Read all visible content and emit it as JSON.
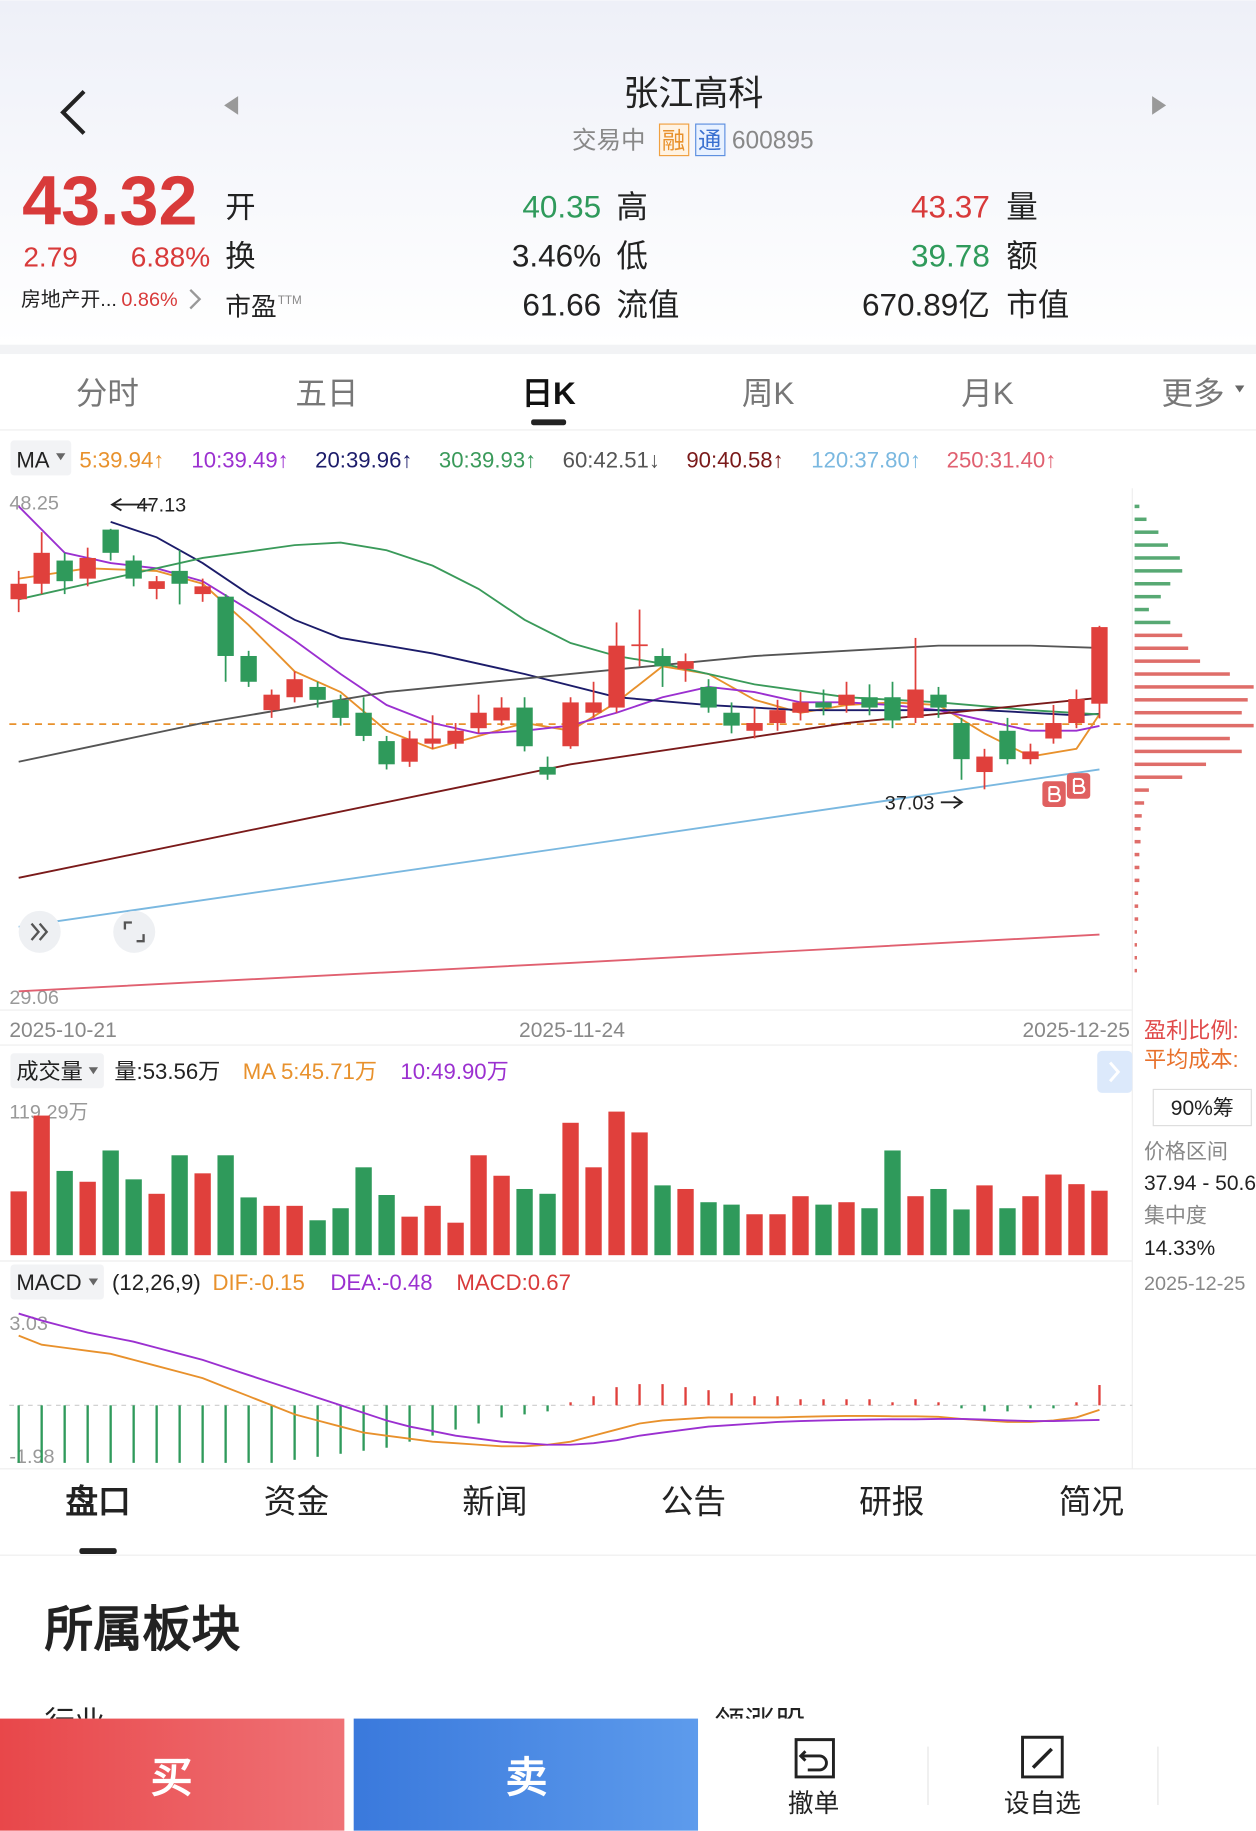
{
  "header": {
    "title": "张江高科",
    "status": "交易中",
    "badges": [
      "融",
      "通"
    ],
    "code": "600895"
  },
  "quote": {
    "price": "43.32",
    "change": "2.79",
    "change_pct": "6.88%",
    "sector": "房地产开...",
    "sector_pct": "0.86%",
    "labels": {
      "open": "开",
      "turnover": "换",
      "pe": "市盈",
      "pe_sup": "TTM"
    },
    "col2": [
      {
        "value": "40.35",
        "label": "高"
      },
      {
        "value": "3.46%",
        "label": "低"
      },
      {
        "value": "61.66",
        "label": "流值"
      }
    ],
    "col3": [
      {
        "value": "43.37",
        "label": "量"
      },
      {
        "value": "39.78",
        "label": "额"
      },
      {
        "value": "670.89亿",
        "label": "市值"
      }
    ]
  },
  "tabs": [
    "分时",
    "五日",
    "日K",
    "周K",
    "月K",
    "更多"
  ],
  "chart": {
    "type": "candlestick",
    "indicator": "MA",
    "ylim": [
      29.06,
      48.25
    ],
    "yticks": [
      48.25,
      29.06
    ],
    "dates": [
      "2025-10-21",
      "2025-11-24",
      "2025-12-25"
    ],
    "annotations": {
      "high": "47.13",
      "low": "37.03"
    },
    "candles": [
      [
        44.4,
        45.0,
        45.5,
        43.9
      ],
      [
        45.0,
        46.2,
        47.0,
        44.6
      ],
      [
        45.9,
        45.1,
        46.2,
        44.6
      ],
      [
        45.2,
        46.0,
        46.4,
        44.9
      ],
      [
        47.1,
        46.2,
        47.13,
        45.9
      ],
      [
        45.9,
        45.2,
        46.1,
        44.9
      ],
      [
        44.8,
        45.1,
        45.3,
        44.4
      ],
      [
        45.5,
        45.0,
        46.3,
        44.2
      ],
      [
        44.6,
        44.9,
        45.2,
        44.3
      ],
      [
        44.5,
        42.2,
        44.6,
        41.2
      ],
      [
        42.2,
        41.2,
        42.4,
        41.0
      ],
      [
        40.1,
        40.7,
        40.9,
        39.8
      ],
      [
        40.6,
        41.3,
        41.6,
        40.4
      ],
      [
        41.0,
        40.5,
        41.2,
        40.2
      ],
      [
        40.5,
        39.8,
        40.7,
        39.5
      ],
      [
        40.0,
        39.1,
        40.6,
        38.9
      ],
      [
        38.9,
        38.0,
        39.1,
        37.8
      ],
      [
        38.1,
        39.0,
        39.3,
        37.9
      ],
      [
        38.8,
        39.0,
        39.9,
        38.6
      ],
      [
        38.8,
        39.3,
        39.6,
        38.6
      ],
      [
        39.4,
        40.0,
        40.7,
        39.2
      ],
      [
        39.7,
        40.2,
        40.6,
        39.5
      ],
      [
        40.2,
        38.7,
        40.6,
        38.5
      ],
      [
        37.9,
        37.6,
        38.3,
        37.4
      ],
      [
        38.7,
        40.4,
        40.6,
        38.6
      ],
      [
        40.0,
        40.4,
        41.2,
        39.8
      ],
      [
        40.2,
        42.6,
        43.5,
        40.0
      ],
      [
        42.6,
        42.65,
        44.0,
        41.8
      ],
      [
        42.2,
        41.8,
        42.5,
        41.0
      ],
      [
        41.7,
        42.0,
        42.3,
        41.2
      ],
      [
        41.0,
        40.2,
        41.3,
        40.0
      ],
      [
        40.0,
        39.5,
        40.4,
        39.2
      ],
      [
        39.3,
        39.6,
        40.2,
        39.0
      ],
      [
        39.6,
        40.1,
        40.5,
        39.3
      ],
      [
        40.0,
        40.4,
        40.8,
        39.7
      ],
      [
        40.4,
        40.2,
        40.9,
        39.9
      ],
      [
        40.3,
        40.7,
        41.2,
        40.0
      ],
      [
        40.6,
        40.2,
        41.1,
        39.9
      ],
      [
        40.6,
        39.7,
        41.2,
        39.4
      ],
      [
        39.8,
        40.9,
        42.9,
        39.6
      ],
      [
        40.7,
        40.2,
        41.0,
        39.8
      ],
      [
        39.6,
        38.2,
        39.8,
        37.4
      ],
      [
        37.7,
        38.3,
        38.6,
        37.03
      ],
      [
        39.3,
        38.2,
        39.8,
        38.0
      ],
      [
        38.2,
        38.5,
        38.8,
        38.0
      ],
      [
        39.0,
        39.6,
        40.3,
        38.8
      ],
      [
        39.6,
        40.53,
        40.9,
        39.4
      ],
      [
        40.35,
        43.32,
        43.37,
        39.78
      ]
    ],
    "up_color": "#e0403c",
    "down_color": "#2f9a5b",
    "ma_lines": [
      {
        "label": "5:39.94↑",
        "color": "#e8912c",
        "x": [
          0,
          3,
          6,
          8,
          10,
          12,
          14,
          16,
          18,
          20,
          22,
          24,
          26,
          28,
          30,
          32,
          34,
          36,
          38,
          40,
          42,
          44,
          46,
          47
        ],
        "values": [
          45.2,
          45.6,
          45.5,
          45.0,
          43.4,
          41.6,
          40.8,
          39.3,
          38.6,
          39.1,
          39.6,
          39.3,
          40.4,
          41.8,
          41.5,
          40.5,
          40.0,
          40.3,
          40.4,
          40.3,
          39.2,
          38.3,
          38.6,
          39.94
        ]
      },
      {
        "label": "10:39.49↑",
        "color": "#9b30d0",
        "x": [
          0,
          2,
          4,
          6,
          8,
          10,
          12,
          14,
          16,
          18,
          20,
          22,
          24,
          26,
          28,
          30,
          32,
          34,
          36,
          38,
          40,
          42,
          44,
          46,
          47
        ],
        "values": [
          48.0,
          46.2,
          45.8,
          45.6,
          45.1,
          44.0,
          42.8,
          41.5,
          40.3,
          39.6,
          39.2,
          39.3,
          39.5,
          40.0,
          40.6,
          41.0,
          40.8,
          40.4,
          40.4,
          40.3,
          40.1,
          39.7,
          39.3,
          39.3,
          39.49
        ]
      },
      {
        "label": "20:39.96↑",
        "color": "#1c1c6a",
        "x": [
          4,
          6,
          8,
          10,
          12,
          14,
          18,
          22,
          26,
          30,
          34,
          38,
          42,
          46,
          47
        ],
        "values": [
          47.4,
          46.8,
          45.8,
          44.6,
          43.6,
          42.9,
          42.3,
          41.5,
          40.6,
          40.3,
          40.1,
          40.1,
          40.1,
          39.9,
          39.96
        ]
      },
      {
        "label": "30:39.93↑",
        "color": "#3a9a5a",
        "x": [
          0,
          4,
          8,
          12,
          14,
          16,
          18,
          20,
          22,
          24,
          26,
          28,
          32,
          36,
          40,
          44,
          47
        ],
        "values": [
          44.4,
          45.2,
          46.0,
          46.5,
          46.6,
          46.3,
          45.7,
          44.8,
          43.6,
          42.7,
          42.2,
          41.9,
          41.1,
          40.6,
          40.4,
          40.1,
          39.93
        ]
      },
      {
        "label": "60:42.51↓",
        "color": "#555555",
        "x": [
          0,
          8,
          16,
          24,
          32,
          40,
          44,
          47
        ],
        "values": [
          38.1,
          39.6,
          40.8,
          41.5,
          42.2,
          42.6,
          42.6,
          42.51
        ]
      },
      {
        "label": "90:40.58↑",
        "color": "#7a1a1a",
        "x": [
          0,
          12,
          24,
          36,
          47
        ],
        "values": [
          33.6,
          35.8,
          38.0,
          39.6,
          40.58
        ]
      },
      {
        "label": "120:37.80↑",
        "color": "#7ab8e0",
        "x": [
          0,
          24,
          47
        ],
        "values": [
          31.7,
          34.8,
          37.8
        ]
      },
      {
        "label": "250:31.40↑",
        "color": "#e06070",
        "x": [
          0,
          24,
          47
        ],
        "values": [
          29.2,
          30.3,
          31.4
        ]
      }
    ],
    "chips": {
      "prices": [
        48,
        47.5,
        47,
        46.5,
        46,
        45.5,
        45,
        44.5,
        44,
        43.5,
        43,
        42.5,
        42,
        41.5,
        41,
        40.5,
        40,
        39.5,
        39,
        38.5,
        38,
        37.5,
        37,
        36.5,
        36,
        35.5,
        35,
        34.5,
        34,
        33.5,
        33,
        32.5,
        32,
        31.5,
        31,
        30.5,
        30
      ],
      "amounts": [
        4,
        10,
        20,
        28,
        38,
        40,
        30,
        22,
        12,
        30,
        40,
        45,
        55,
        80,
        100,
        95,
        90,
        100,
        80,
        90,
        60,
        40,
        12,
        8,
        6,
        5,
        5,
        4,
        4,
        4,
        3,
        3,
        3,
        2,
        2,
        2,
        2
      ]
    }
  },
  "side": {
    "profit": "盈利比例:",
    "cost": "平均成本:",
    "chip_btn": "90%筹",
    "range_label": "价格区间",
    "range": "37.94 - 50.6",
    "conc_label": "集中度",
    "conc": "14.33%",
    "date": "2025-12-25"
  },
  "volume": {
    "label": "成交量",
    "vol": "量:53.56万",
    "ma5": "MA 5:45.71万",
    "ma10": "10:49.90万",
    "ylim": [
      0,
      119.29
    ],
    "yticks": [
      {
        "value": 119.29,
        "label": "119.29万"
      }
    ],
    "values": [
      53,
      116,
      70,
      61,
      87,
      63,
      51,
      83,
      68,
      83,
      48,
      41,
      41,
      29,
      39,
      73,
      50,
      32,
      41,
      27,
      83,
      66,
      55,
      51,
      110,
      73,
      119.29,
      102,
      58,
      55,
      44,
      42,
      34,
      34,
      49,
      42,
      44,
      39,
      87,
      49,
      55,
      38,
      58,
      39,
      49,
      67,
      59,
      53.56
    ]
  },
  "macd": {
    "label": "MACD",
    "params": "(12,26,9)",
    "dif_label": "DIF:-0.15",
    "dea_label": "DEA:-0.48",
    "macd_label": "MACD:0.67",
    "ylim": [
      -1.98,
      3.03
    ],
    "yticks": [
      3.03,
      -1.98
    ],
    "dif_color": "#e8912c",
    "dea_color": "#9b30d0",
    "hist": [
      -1.9,
      -1.9,
      -1.9,
      -1.9,
      -1.9,
      -1.9,
      -1.9,
      -1.9,
      -1.9,
      -1.9,
      -1.9,
      -1.9,
      -1.8,
      -1.7,
      -1.6,
      -1.5,
      -1.4,
      -1.2,
      -1.0,
      -0.8,
      -0.6,
      -0.4,
      -0.3,
      -0.2,
      0.1,
      0.3,
      0.6,
      0.7,
      0.7,
      0.6,
      0.5,
      0.4,
      0.3,
      0.3,
      0.2,
      0.2,
      0.2,
      0.2,
      0.1,
      0.2,
      0.1,
      -0.1,
      -0.2,
      -0.2,
      -0.1,
      -0.1,
      0.1,
      0.67
    ],
    "dif": [
      2.3,
      2.0,
      1.9,
      1.8,
      1.7,
      1.5,
      1.3,
      1.1,
      0.9,
      0.6,
      0.3,
      0.0,
      -0.3,
      -0.5,
      -0.7,
      -0.9,
      -1.0,
      -1.1,
      -1.2,
      -1.25,
      -1.3,
      -1.35,
      -1.35,
      -1.3,
      -1.2,
      -1.0,
      -0.8,
      -0.6,
      -0.5,
      -0.45,
      -0.4,
      -0.4,
      -0.4,
      -0.4,
      -0.38,
      -0.36,
      -0.35,
      -0.35,
      -0.36,
      -0.36,
      -0.38,
      -0.45,
      -0.5,
      -0.55,
      -0.55,
      -0.5,
      -0.4,
      -0.15
    ],
    "dea": [
      3.03,
      2.8,
      2.6,
      2.4,
      2.25,
      2.1,
      1.9,
      1.7,
      1.5,
      1.25,
      1.0,
      0.75,
      0.5,
      0.25,
      0.0,
      -0.25,
      -0.5,
      -0.7,
      -0.85,
      -1.0,
      -1.1,
      -1.2,
      -1.25,
      -1.3,
      -1.3,
      -1.25,
      -1.15,
      -1.0,
      -0.9,
      -0.8,
      -0.7,
      -0.65,
      -0.6,
      -0.55,
      -0.52,
      -0.5,
      -0.48,
      -0.47,
      -0.46,
      -0.46,
      -0.45,
      -0.45,
      -0.47,
      -0.5,
      -0.52,
      -0.52,
      -0.5,
      -0.48
    ]
  },
  "bottom_tabs": [
    "盘口",
    "资金",
    "新闻",
    "公告",
    "研报",
    "简况"
  ],
  "section": {
    "title": "所属板块",
    "industry": "行业",
    "leader": "领涨股"
  },
  "actions": {
    "buy": "买",
    "sell": "卖",
    "cancel": "撤单",
    "watch": "设自选"
  }
}
